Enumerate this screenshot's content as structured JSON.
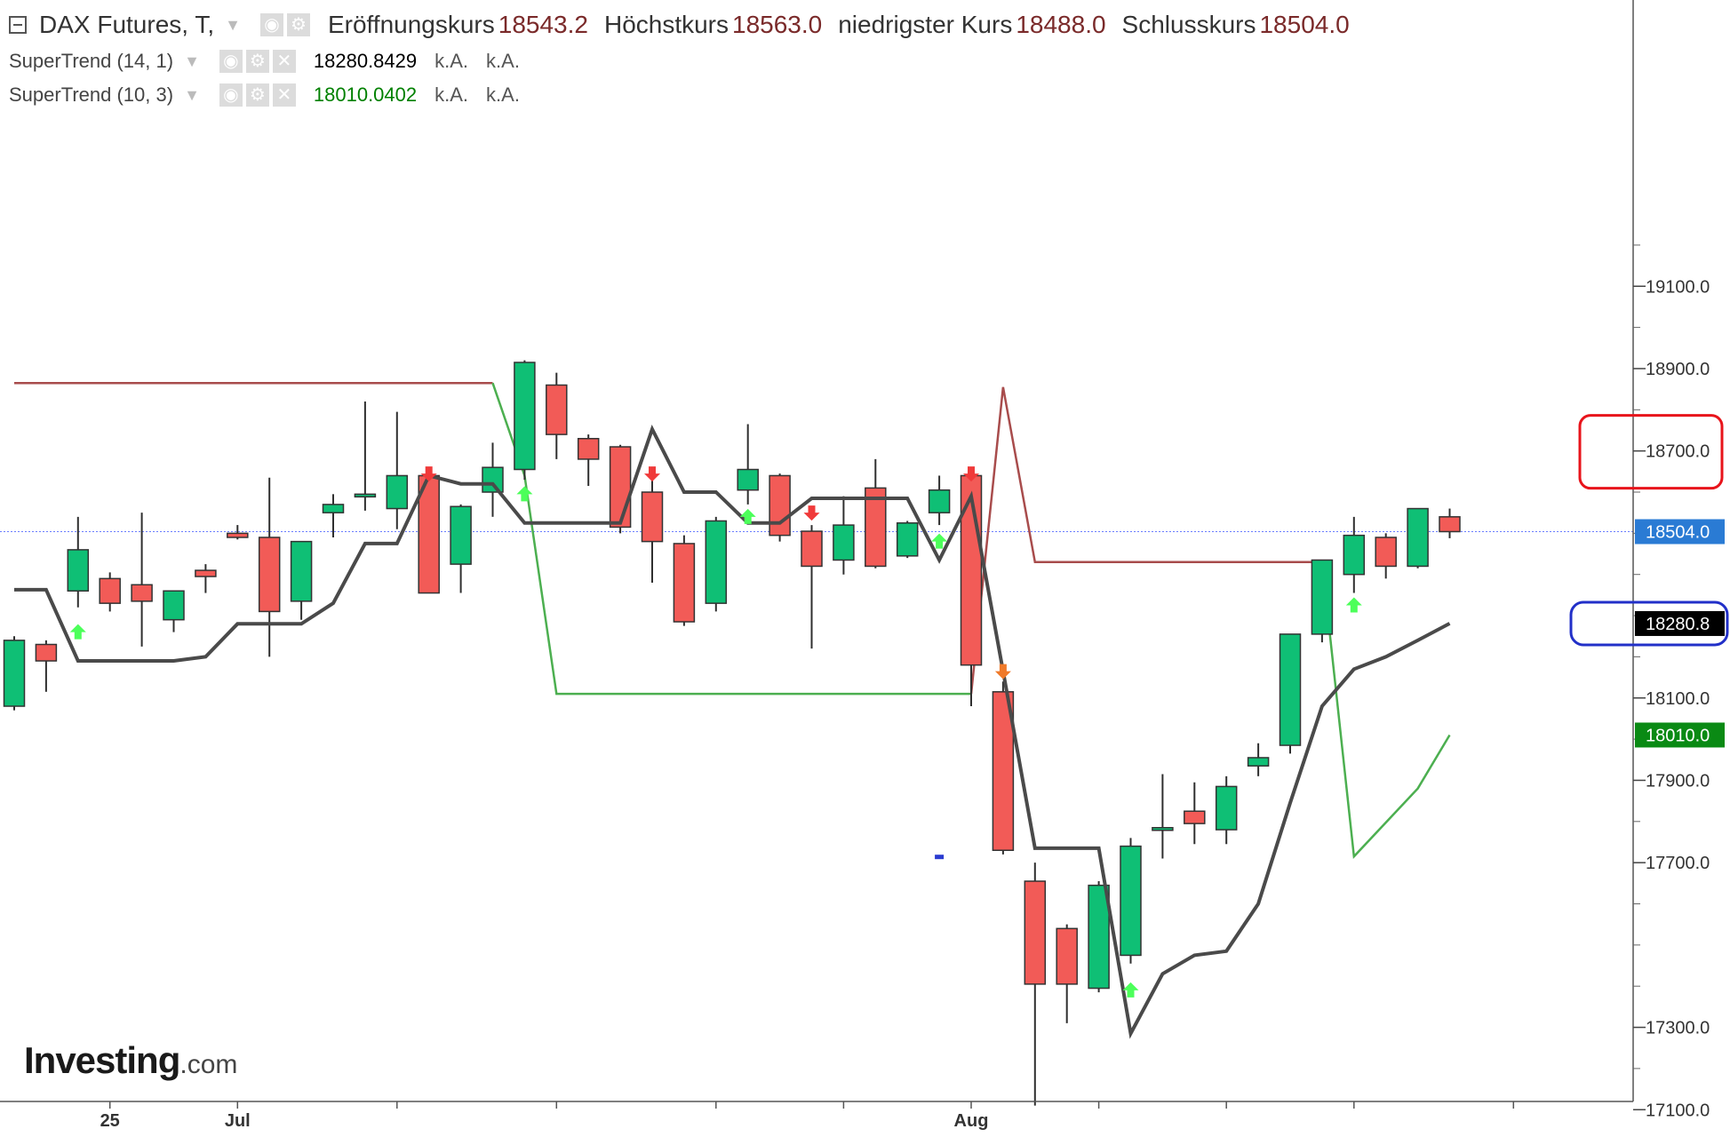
{
  "header": {
    "title": "DAX Futures, T,",
    "open_label": "Eröffnungskurs",
    "open_value": "18543.2",
    "high_label": "Höchstkurs",
    "high_value": "18563.0",
    "low_label": "niedrigster Kurs",
    "low_value": "18488.0",
    "close_label": "Schlusskurs",
    "close_value": "18504.0"
  },
  "indicators": [
    {
      "name": "SuperTrend (14, 1)",
      "value": "18280.8429",
      "na1": "k.A.",
      "na2": "k.A.",
      "color": "#000000"
    },
    {
      "name": "SuperTrend (10, 3)",
      "value": "18010.0402",
      "na1": "k.A.",
      "na2": "k.A.",
      "color": "#008000"
    }
  ],
  "logo": {
    "brand": "Investing",
    "tld": ".com"
  },
  "colors": {
    "bull": "#0fbf75",
    "bear": "#f25b57",
    "supertrend_fast": "#4a4a4a",
    "supertrend_slow_up": "#4caf50",
    "supertrend_slow_down": "#a84c4c",
    "price_line": "#6b7dff",
    "arrow_up": "#4cff5a",
    "arrow_down": "#f03a3a",
    "label_price": "#2a7bd4",
    "label_fast": "#000000",
    "label_slow": "#0a8a14",
    "highlight_red": "#e8141b",
    "highlight_blue": "#2230c8"
  },
  "chart_data": {
    "type": "candlestick",
    "y_ticks": [
      "19100.0",
      "18900.0",
      "18700.0",
      "18100.0",
      "17900.0",
      "17700.0",
      "17300.0",
      "17100.0"
    ],
    "x_labels": [
      {
        "index": 3,
        "text": "25"
      },
      {
        "index": 7,
        "text": "Jul"
      },
      {
        "index": 30,
        "text": "Aug"
      }
    ],
    "last_price": 18504.0,
    "price_labels": [
      {
        "text": "18504.0",
        "value": 18504.0,
        "role": "last"
      },
      {
        "text": "18280.8",
        "value": 18280.8,
        "role": "fast"
      },
      {
        "text": "18010.0",
        "value": 18010.0,
        "role": "slow"
      }
    ],
    "candles": [
      {
        "o": 18080,
        "h": 18250,
        "l": 18070,
        "c": 18240
      },
      {
        "o": 18230,
        "h": 18240,
        "l": 18115,
        "c": 18190
      },
      {
        "o": 18360,
        "h": 18540,
        "l": 18320,
        "c": 18460
      },
      {
        "o": 18390,
        "h": 18405,
        "l": 18310,
        "c": 18330
      },
      {
        "o": 18375,
        "h": 18550,
        "l": 18225,
        "c": 18335
      },
      {
        "o": 18290,
        "h": 18360,
        "l": 18260,
        "c": 18360
      },
      {
        "o": 18410,
        "h": 18425,
        "l": 18355,
        "c": 18395
      },
      {
        "o": 18500,
        "h": 18520,
        "l": 18485,
        "c": 18490
      },
      {
        "o": 18490,
        "h": 18635,
        "l": 18200,
        "c": 18310
      },
      {
        "o": 18335,
        "h": 18470,
        "l": 18290,
        "c": 18480
      },
      {
        "o": 18550,
        "h": 18595,
        "l": 18490,
        "c": 18570
      },
      {
        "o": 18590,
        "h": 18820,
        "l": 18555,
        "c": 18595
      },
      {
        "o": 18560,
        "h": 18795,
        "l": 18510,
        "c": 18640
      },
      {
        "o": 18640,
        "h": 18640,
        "l": 18365,
        "c": 18355
      },
      {
        "o": 18425,
        "h": 18570,
        "l": 18355,
        "c": 18565
      },
      {
        "o": 18600,
        "h": 18720,
        "l": 18540,
        "c": 18660
      },
      {
        "o": 18655,
        "h": 18920,
        "l": 18630,
        "c": 18915
      },
      {
        "o": 18860,
        "h": 18890,
        "l": 18680,
        "c": 18740
      },
      {
        "o": 18730,
        "h": 18740,
        "l": 18615,
        "c": 18680
      },
      {
        "o": 18710,
        "h": 18715,
        "l": 18500,
        "c": 18515
      },
      {
        "o": 18600,
        "h": 18640,
        "l": 18380,
        "c": 18480
      },
      {
        "o": 18475,
        "h": 18495,
        "l": 18275,
        "c": 18285
      },
      {
        "o": 18330,
        "h": 18540,
        "l": 18310,
        "c": 18530
      },
      {
        "o": 18605,
        "h": 18765,
        "l": 18570,
        "c": 18655
      },
      {
        "o": 18640,
        "h": 18645,
        "l": 18480,
        "c": 18495
      },
      {
        "o": 18505,
        "h": 18520,
        "l": 18220,
        "c": 18420
      },
      {
        "o": 18435,
        "h": 18590,
        "l": 18400,
        "c": 18520
      },
      {
        "o": 18610,
        "h": 18680,
        "l": 18415,
        "c": 18420
      },
      {
        "o": 18445,
        "h": 18530,
        "l": 18440,
        "c": 18525
      },
      {
        "o": 18550,
        "h": 18640,
        "l": 18520,
        "c": 18605
      },
      {
        "o": 18640,
        "h": 18645,
        "l": 18080,
        "c": 18180
      },
      {
        "o": 18115,
        "h": 18140,
        "l": 17720,
        "c": 17730
      },
      {
        "o": 17655,
        "h": 17700,
        "l": 17110,
        "c": 17405
      },
      {
        "o": 17540,
        "h": 17550,
        "l": 17310,
        "c": 17405
      },
      {
        "o": 17395,
        "h": 17655,
        "l": 17385,
        "c": 17645
      },
      {
        "o": 17475,
        "h": 17760,
        "l": 17455,
        "c": 17740
      },
      {
        "o": 17780,
        "h": 17915,
        "l": 17710,
        "c": 17785
      },
      {
        "o": 17825,
        "h": 17895,
        "l": 17745,
        "c": 17795
      },
      {
        "o": 17780,
        "h": 17910,
        "l": 17745,
        "c": 17885
      },
      {
        "o": 17935,
        "h": 17990,
        "l": 17910,
        "c": 17955
      },
      {
        "o": 17985,
        "h": 18250,
        "l": 17965,
        "c": 18255
      },
      {
        "o": 18255,
        "h": 18420,
        "l": 18235,
        "c": 18435
      },
      {
        "o": 18400,
        "h": 18540,
        "l": 18355,
        "c": 18495
      },
      {
        "o": 18490,
        "h": 18500,
        "l": 18390,
        "c": 18420
      },
      {
        "o": 18420,
        "h": 18550,
        "l": 18415,
        "c": 18560
      },
      {
        "o": 18540,
        "h": 18560,
        "l": 18488,
        "c": 18504
      }
    ],
    "supertrend_fast": {
      "name": "SuperTrend (14, 1)",
      "segments": [
        [
          [
            0,
            18363
          ],
          [
            1,
            18363
          ],
          [
            2,
            18190
          ],
          [
            3,
            18190
          ],
          [
            4,
            18190
          ],
          [
            5,
            18190
          ],
          [
            6,
            18200
          ],
          [
            7,
            18280
          ],
          [
            8,
            18280
          ],
          [
            9,
            18280
          ],
          [
            10,
            18330
          ],
          [
            11,
            18475
          ],
          [
            12,
            18475
          ],
          [
            13,
            18640
          ],
          [
            14,
            18620
          ],
          [
            15,
            18620
          ],
          [
            16,
            18525
          ],
          [
            17,
            18525
          ],
          [
            18,
            18525
          ],
          [
            19,
            18525
          ],
          [
            20,
            18753
          ],
          [
            21,
            18600
          ],
          [
            22,
            18600
          ],
          [
            23,
            18525
          ],
          [
            24,
            18525
          ],
          [
            25,
            18585
          ],
          [
            26,
            18585
          ],
          [
            27,
            18585
          ],
          [
            28,
            18585
          ],
          [
            29,
            18435
          ],
          [
            30,
            18590
          ],
          [
            31,
            18165
          ],
          [
            32,
            17735
          ],
          [
            33,
            17735
          ],
          [
            34,
            17735
          ],
          [
            35,
            17285
          ],
          [
            36,
            17430
          ],
          [
            37,
            17475
          ],
          [
            38,
            17485
          ],
          [
            39,
            17600
          ],
          [
            40,
            17845
          ],
          [
            41,
            18080
          ],
          [
            42,
            18170
          ],
          [
            43,
            18200
          ],
          [
            44,
            18240
          ],
          [
            45,
            18280.8429
          ]
        ]
      ]
    },
    "supertrend_slow": {
      "name": "SuperTrend (10, 3)",
      "segments": [
        {
          "trend": "down",
          "points": [
            [
              0,
              18865
            ],
            [
              15,
              18865
            ]
          ]
        },
        {
          "trend": "up",
          "points": [
            [
              15,
              18865
            ],
            [
              16,
              18640
            ],
            [
              17,
              18110
            ],
            [
              30,
              18110
            ]
          ]
        },
        {
          "trend": "down",
          "points": [
            [
              30,
              18110
            ],
            [
              31,
              18855
            ],
            [
              32,
              18430
            ],
            [
              41,
              18430
            ]
          ]
        },
        {
          "trend": "up",
          "points": [
            [
              41,
              18430
            ],
            [
              42,
              17715
            ],
            [
              44,
              17880
            ],
            [
              45,
              18010.0402
            ]
          ]
        }
      ]
    },
    "signals": [
      {
        "index": 2,
        "dir": "up",
        "value": 18260
      },
      {
        "index": 13,
        "dir": "down",
        "value": 18645
      },
      {
        "index": 16,
        "dir": "up",
        "value": 18595
      },
      {
        "index": 20,
        "dir": "down",
        "value": 18645
      },
      {
        "index": 23,
        "dir": "up",
        "value": 18540
      },
      {
        "index": 25,
        "dir": "down",
        "value": 18550
      },
      {
        "index": 29,
        "dir": "up",
        "value": 18480
      },
      {
        "index": 30,
        "dir": "down",
        "value": 18645
      },
      {
        "index": 31,
        "dir": "down",
        "value": 18165,
        "color": "#f07a2a"
      },
      {
        "index": 35,
        "dir": "up",
        "value": 17390
      },
      {
        "index": 42,
        "dir": "up",
        "value": 18325
      }
    ],
    "extra_marks": [
      {
        "index": 29,
        "value": 17715,
        "color": "#2a3bd0"
      }
    ]
  }
}
